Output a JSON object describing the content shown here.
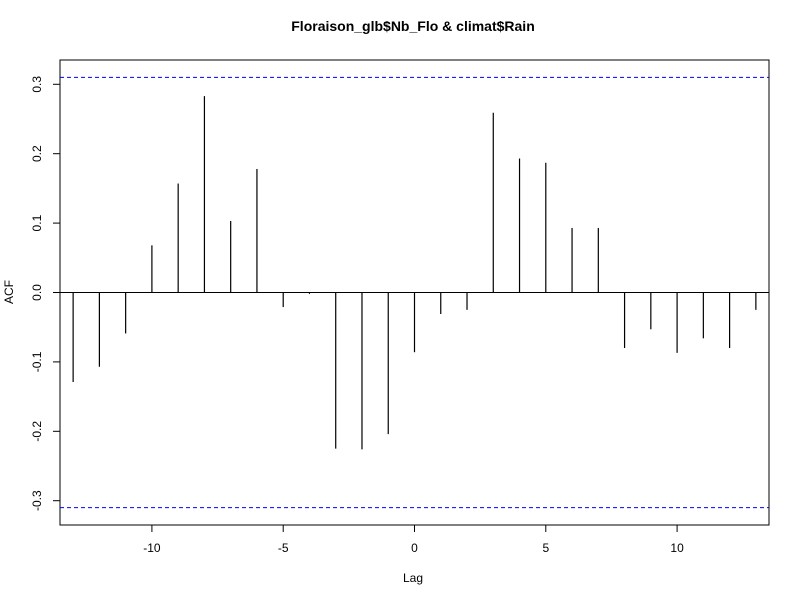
{
  "chart_data": {
    "type": "bar",
    "title": "Floraison_glb$Nb_Flo & climat$Rain",
    "xlabel": "Lag",
    "ylabel": "ACF",
    "x": [
      -13,
      -12,
      -11,
      -10,
      -9,
      -8,
      -7,
      -6,
      -5,
      -4,
      -3,
      -2,
      -1,
      0,
      1,
      2,
      3,
      4,
      5,
      6,
      7,
      8,
      9,
      10,
      11,
      12,
      13
    ],
    "values": [
      -0.129,
      -0.107,
      -0.059,
      0.068,
      0.157,
      0.283,
      0.103,
      0.178,
      -0.021,
      -0.002,
      -0.225,
      -0.226,
      -0.204,
      -0.086,
      -0.031,
      -0.025,
      0.259,
      0.193,
      0.187,
      0.093,
      0.093,
      -0.08,
      -0.053,
      -0.087,
      -0.066,
      -0.08,
      -0.025
    ],
    "confidence_band": [
      -0.31,
      0.31
    ],
    "xlim": [
      -13.5,
      13.5
    ],
    "ylim": [
      -0.335,
      0.335
    ],
    "x_ticks": [
      -10,
      -5,
      0,
      5,
      10
    ],
    "x_tick_labels": [
      "-10",
      "-5",
      "0",
      "5",
      "10"
    ],
    "y_ticks": [
      -0.3,
      -0.2,
      -0.1,
      0.0,
      0.1,
      0.2,
      0.3
    ],
    "y_tick_labels": [
      "-0.3",
      "-0.2",
      "-0.1",
      "0.0",
      "0.1",
      "0.2",
      "0.3"
    ],
    "grid": false,
    "colors": {
      "bars": "#000000",
      "confidence_band": "#0000ff",
      "axis": "#000000"
    }
  }
}
